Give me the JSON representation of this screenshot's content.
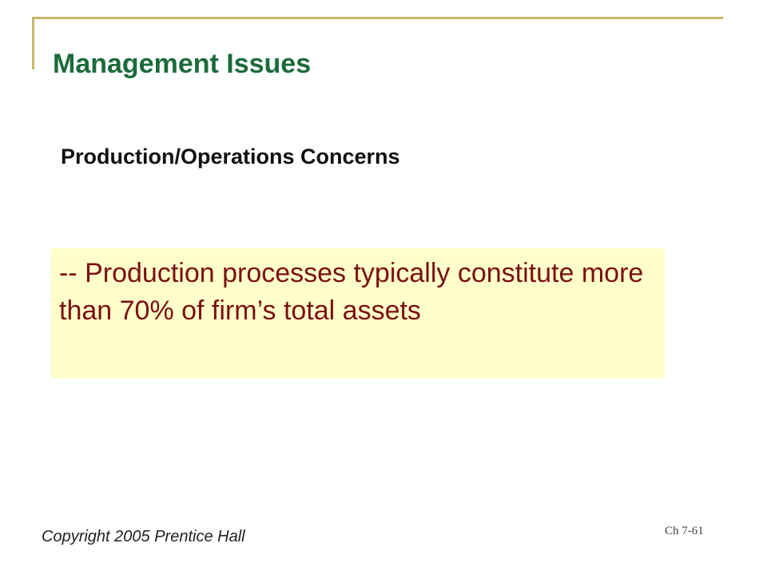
{
  "slide": {
    "title": "Management Issues",
    "subtitle": "Production/Operations Concerns",
    "callout_text": "-- Production processes typically constitute more than 70% of firm’s total assets",
    "footer": {
      "copyright": "Copyright  2005 Prentice Hall",
      "slide_number": "Ch 7-61"
    }
  },
  "colors": {
    "title": "#1b6b3a",
    "callout_background": "#ffffcc",
    "callout_text": "#7a1010",
    "frame": "#c8b96a"
  }
}
